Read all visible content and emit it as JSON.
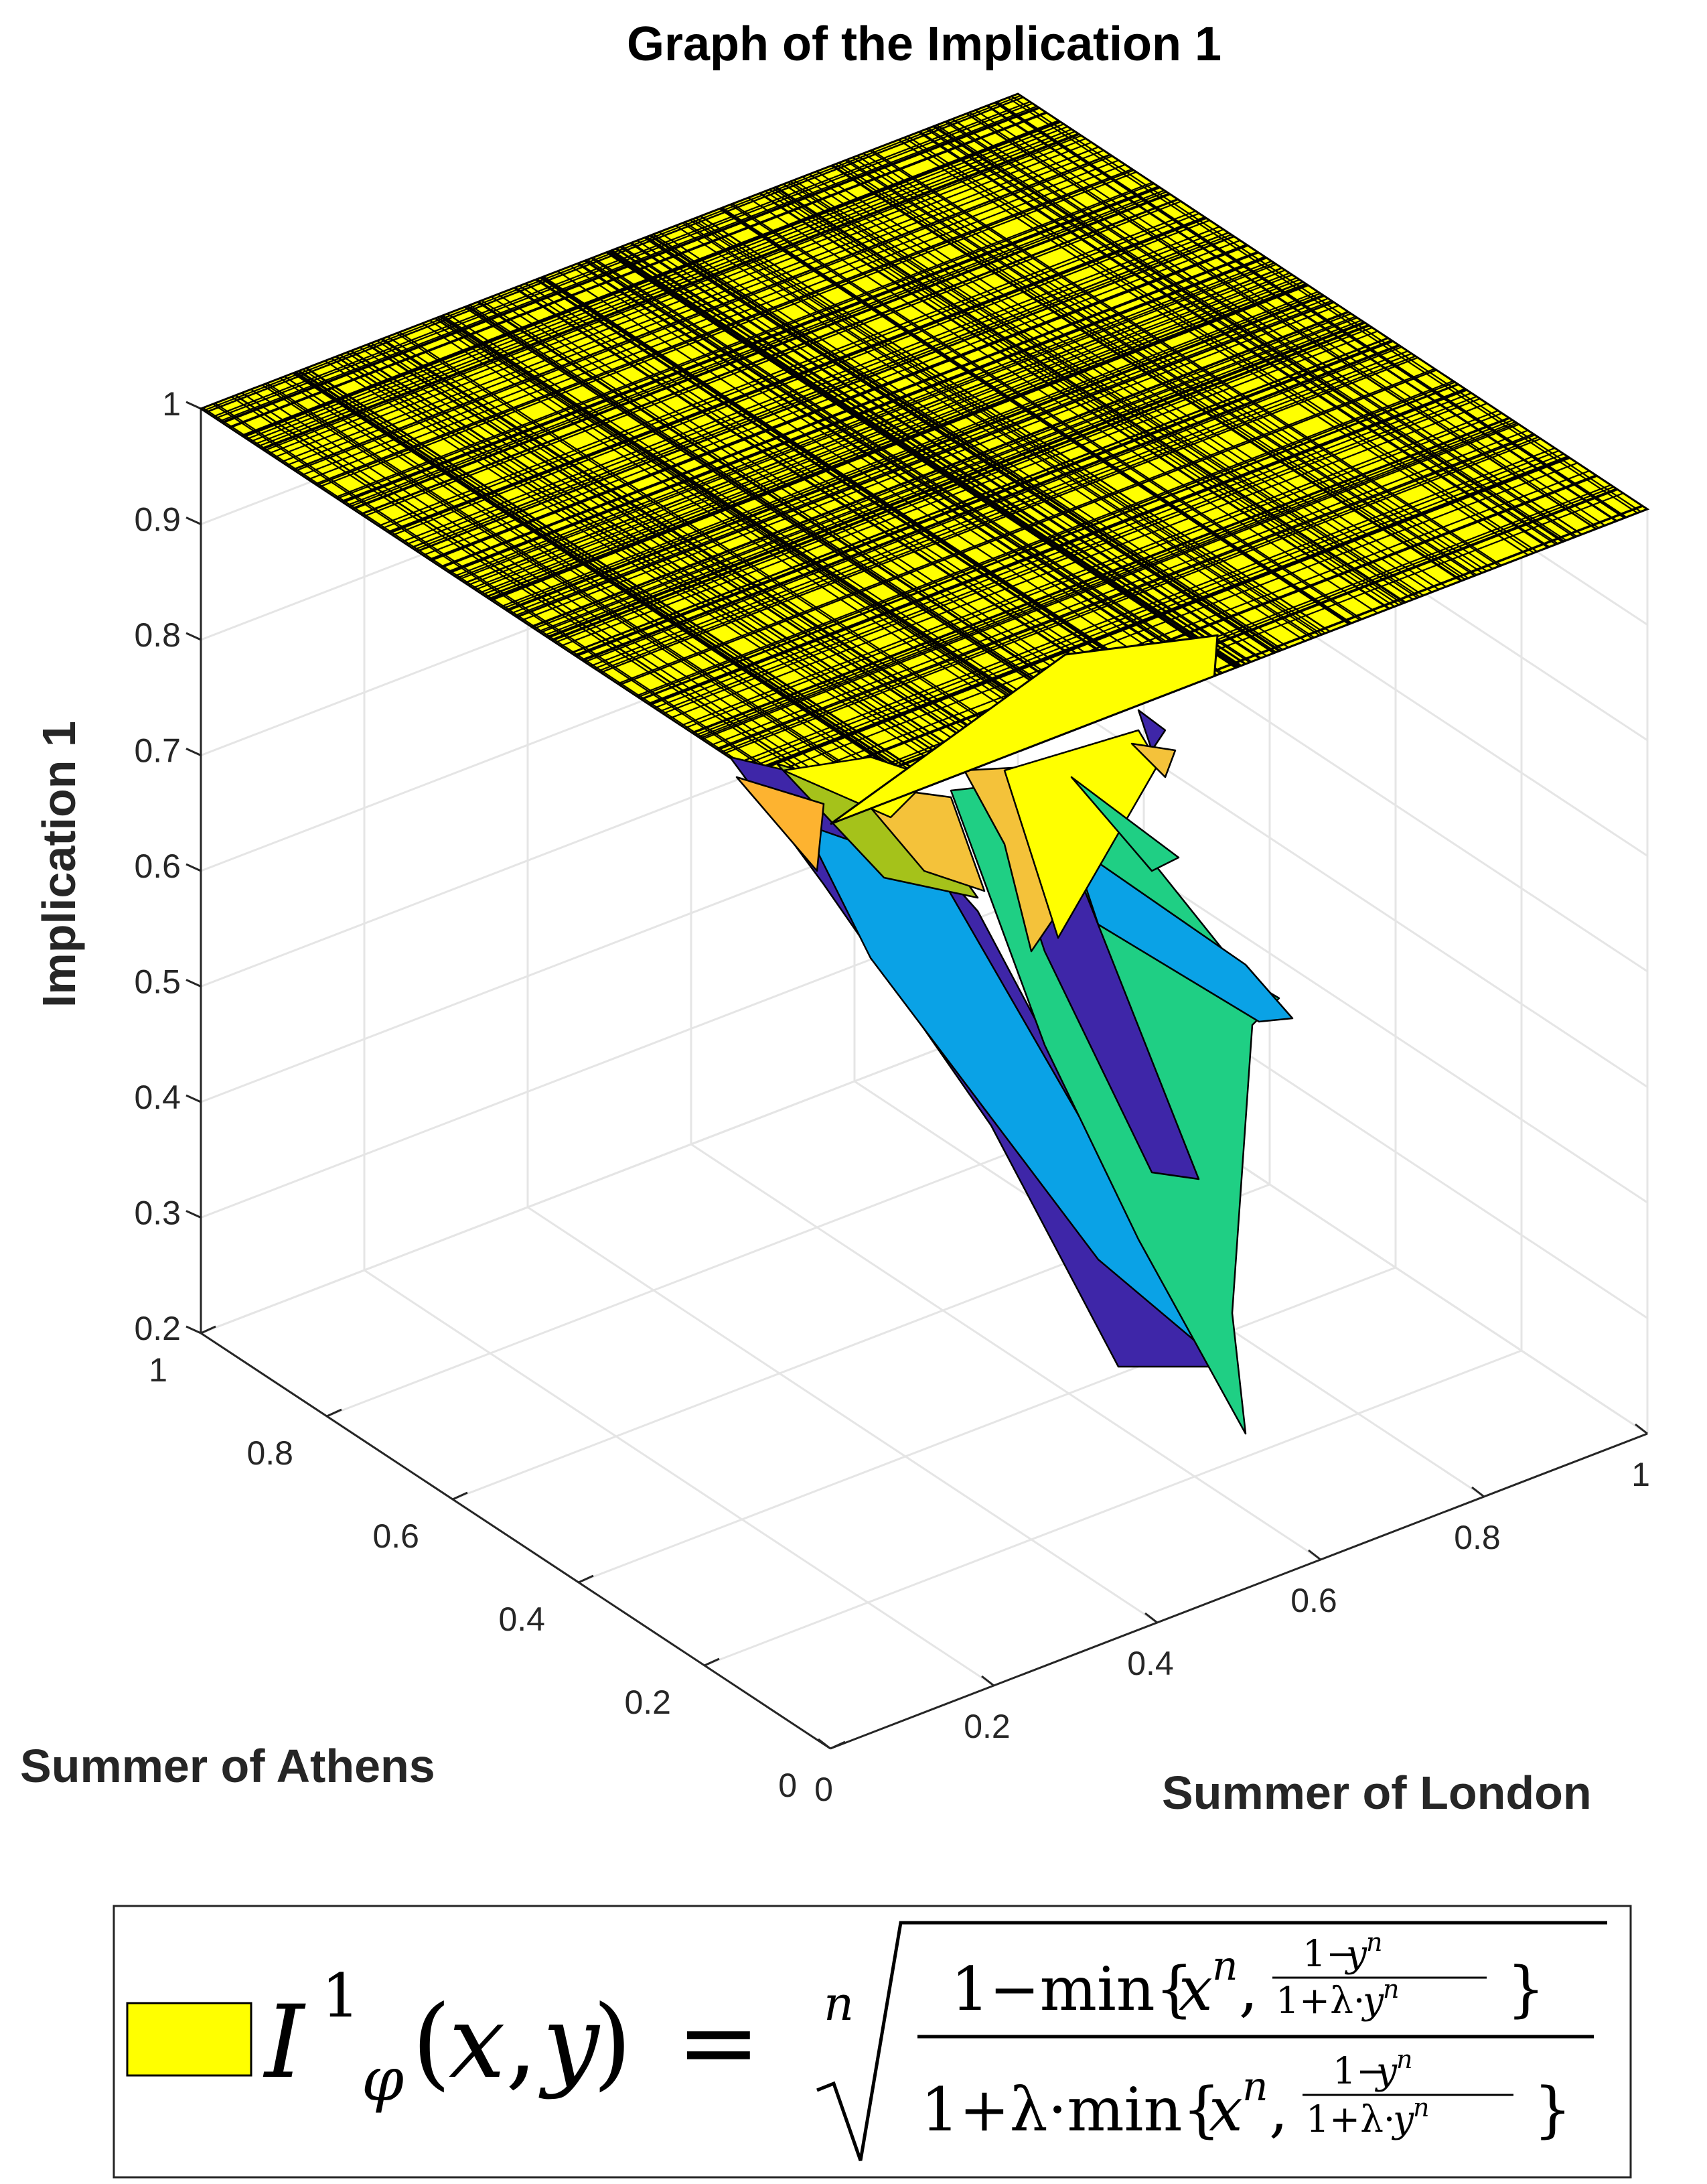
{
  "chart_data": {
    "type": "surface",
    "title": "Graph of the Implication 1",
    "xlabel": "Summer of London",
    "ylabel": "Summer of Athens",
    "zlabel": "Implication 1",
    "xlim": [
      0,
      1
    ],
    "ylim": [
      0,
      1
    ],
    "zlim": [
      0.2,
      1
    ],
    "x_ticks": [
      "0",
      "0.2",
      "0.4",
      "0.6",
      "0.8",
      "1"
    ],
    "y_ticks": [
      "0",
      "0.2",
      "0.4",
      "0.6",
      "0.8",
      "1"
    ],
    "z_ticks": [
      "0.2",
      "0.3",
      "0.4",
      "0.5",
      "0.6",
      "0.7",
      "0.8",
      "0.9",
      "1"
    ],
    "grid": true,
    "colormap": "parula",
    "plateau_value": 1,
    "descending_region": [
      {
        "x": 0.5,
        "y": 0.55,
        "z": 0.68
      },
      {
        "x": 0.6,
        "y": 0.4,
        "z": 0.55
      },
      {
        "x": 0.66,
        "y": 0.35,
        "z": 0.22
      },
      {
        "x": 0.72,
        "y": 0.3,
        "z": 0.2
      },
      {
        "x": 0.78,
        "y": 0.28,
        "z": 0.28
      },
      {
        "x": 0.84,
        "y": 0.35,
        "z": 0.45
      }
    ],
    "legend": {
      "placement": "bottom",
      "label": "I¹_φ(x,y) = ⁿ√( (1−min{xⁿ, (1−yⁿ)/(1+λ·yⁿ)}) / (1+λ·min{xⁿ, (1−yⁿ)/(1+λ·yⁿ)}) )",
      "color": "#ffff00"
    }
  },
  "colors": {
    "plateau": "#ffff00",
    "indigo": "#3e26a8",
    "green": "#1fcf84",
    "sky": "#0aa2e6",
    "olive": "#a5c21a",
    "gold": "#f4c23a",
    "orange": "#fdb330",
    "grid": "#e5e5e5",
    "axis": "#262626"
  }
}
